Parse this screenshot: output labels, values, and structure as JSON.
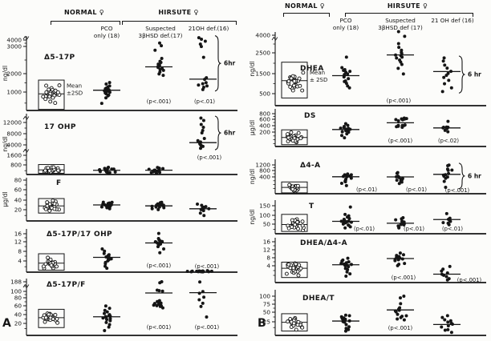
{
  "figure": {
    "background": "#fcfcfa",
    "ink": "#151515",
    "panel_labels": [
      "A",
      "B"
    ]
  },
  "panels": [
    {
      "label": "A",
      "header": {
        "normal": "NORMAL ♀",
        "hirsute": "HIRSUTE ♀",
        "columns": [
          {
            "line1": "PCO",
            "line2": "only (18)"
          },
          {
            "line1": "Suspected",
            "line2": "3βHSD def.(17)"
          },
          {
            "line1": "21OH def.(16)",
            "line2": ""
          }
        ]
      }
    },
    {
      "label": "B",
      "header": {
        "normal": "NORMAL ♀",
        "hirsute": "HIRSUTE ♀",
        "columns": [
          {
            "line1": "PCO",
            "line2": "only (18)"
          },
          {
            "line1": "Suspected",
            "line2": "3βHSD def (17)"
          },
          {
            "line1": "21 OH def (16)",
            "line2": ""
          }
        ]
      }
    }
  ],
  "chart_data": [
    {
      "panel": "A",
      "type": "scatter",
      "title": "Δ5-17P",
      "ylabel": "ng/dl",
      "yticks": [
        4000,
        3000,
        2000,
        1000
      ],
      "groups": {
        "normal": {
          "kind": "open-circles",
          "mean": 900,
          "range_2sd": [
            60,
            1650
          ],
          "n": 26,
          "note": [
            "Mean",
            "±2SD"
          ]
        },
        "pco": {
          "mean": 1100,
          "points": [
            380,
            700,
            780,
            840,
            900,
            950,
            980,
            1010,
            1040,
            1070,
            1100,
            1130,
            1170,
            1210,
            1260,
            1320,
            1430,
            1520
          ]
        },
        "suspected": {
          "mean": 2250,
          "p": "(p<.001)",
          "points": [
            1900,
            2000,
            2060,
            2110,
            2150,
            2190,
            2220,
            2250,
            2280,
            2310,
            2350,
            2400,
            2460,
            2550,
            2850,
            3150,
            3500
          ]
        },
        "oh21": {
          "mean": 1700,
          "p": "(p<.01)",
          "bracket": "6hr",
          "points": [
            1150,
            1250,
            1320,
            1380,
            1450,
            1520,
            1700,
            1780,
            2600,
            3000,
            3400,
            3800,
            4100,
            4350
          ]
        }
      }
    },
    {
      "panel": "A",
      "type": "scatter",
      "title": "17 OHP",
      "ylabel": "ng/dl",
      "yticks": [
        12000,
        8000,
        4000,
        1600,
        800
      ],
      "groups": {
        "normal": {
          "kind": "open-circles",
          "mean": 380,
          "range_2sd": [
            100,
            830
          ],
          "n": 24
        },
        "pco": {
          "mean": 350,
          "points": [
            110,
            140,
            170,
            200,
            230,
            260,
            290,
            310,
            340,
            370,
            400,
            430,
            460,
            500,
            540,
            580
          ]
        },
        "suspected": {
          "mean": 360,
          "points": [
            120,
            155,
            195,
            225,
            255,
            285,
            315,
            345,
            375,
            405,
            440,
            475,
            515,
            555,
            595
          ]
        },
        "oh21": {
          "mean": 4800,
          "p": "(p<.001)",
          "bracket": "6hr",
          "points": [
            3200,
            3600,
            3900,
            4100,
            4300,
            4600,
            5000,
            5600,
            6400,
            8200,
            9200,
            10200,
            11200,
            12600,
            13600
          ]
        }
      }
    },
    {
      "panel": "A",
      "type": "scatter",
      "title": "F",
      "ylabel": "μg/dl",
      "yticks": [
        80,
        60,
        40,
        20
      ],
      "groups": {
        "normal": {
          "kind": "open-circles",
          "mean": 28,
          "range_2sd": [
            14,
            43
          ],
          "n": 26
        },
        "pco": {
          "mean": 30,
          "points": [
            22,
            24,
            25,
            26,
            27,
            28,
            28,
            29,
            30,
            30,
            31,
            32,
            33,
            34,
            35,
            36
          ]
        },
        "suspected": {
          "mean": 28,
          "points": [
            20,
            22,
            24,
            25,
            26,
            27,
            28,
            29,
            29,
            30,
            31,
            32,
            33,
            35,
            36
          ]
        },
        "oh21": {
          "mean": 22,
          "points": [
            10,
            14,
            18,
            20,
            22,
            23,
            25,
            27,
            29,
            32
          ]
        }
      }
    },
    {
      "panel": "A",
      "type": "scatter",
      "title": "Δ5-17P/17 OHP",
      "ylabel": "",
      "yticks": [
        16,
        12,
        8,
        4
      ],
      "groups": {
        "normal": {
          "kind": "open-circles",
          "mean": 3.2,
          "range_2sd": [
            0.7,
            7
          ],
          "n": 24
        },
        "pco": {
          "mean": 5.5,
          "points": [
            1.5,
            2,
            3,
            3.5,
            4,
            4.5,
            4.8,
            5,
            5.3,
            5.6,
            5.9,
            6.2,
            6.6,
            7,
            8,
            9
          ]
        },
        "suspected": {
          "mean": 11.5,
          "p": "(p<.001)",
          "points": [
            7.5,
            9,
            10,
            10.5,
            11,
            11.2,
            11.5,
            11.8,
            12,
            12.2,
            12.5,
            13,
            13.5,
            16
          ]
        },
        "oh21": {
          "mean": null,
          "p": "(p<.001)",
          "points": [
            0.1,
            0.12,
            0.15,
            0.18,
            0.2,
            0.2,
            0.22,
            0.25,
            0.25,
            0.28,
            0.3,
            0.3,
            0.32,
            0.35,
            0.38,
            0.4,
            0.42,
            0.45
          ]
        }
      }
    },
    {
      "panel": "A",
      "type": "scatter",
      "title": "Δ5-17P/F",
      "ylabel": "",
      "yticks": [
        188,
        100,
        80,
        60,
        40,
        20
      ],
      "groups": {
        "normal": {
          "kind": "open-circles",
          "mean": 33,
          "range_2sd": [
            13,
            52
          ],
          "n": 26
        },
        "pco": {
          "mean": 35,
          "points": [
            8,
            14,
            18,
            22,
            26,
            29,
            31,
            33,
            34,
            35,
            36,
            38,
            40,
            43,
            46,
            50,
            55,
            60
          ]
        },
        "suspected": {
          "mean": 95,
          "p": "(p<.001)",
          "points": [
            55,
            58,
            60,
            61,
            62,
            63,
            64,
            65,
            66,
            68,
            70,
            72,
            100,
            107,
            112,
            180,
            186
          ]
        },
        "oh21": {
          "mean": 96,
          "p": "(p<.001)",
          "points": [
            35,
            58,
            66,
            75,
            82,
            95,
            100,
            186
          ]
        }
      }
    },
    {
      "panel": "B",
      "type": "scatter",
      "title": "DHEA",
      "ylabel": "ng/dl",
      "yticks": [
        4000,
        2500,
        1500,
        500
      ],
      "groups": {
        "normal": {
          "kind": "open-circles",
          "mean": 1150,
          "range_2sd": [
            320,
            2050
          ],
          "n": 28,
          "note": [
            "Mean",
            "± 2SD"
          ]
        },
        "pco": {
          "mean": 1400,
          "points": [
            800,
            900,
            1000,
            1100,
            1150,
            1250,
            1350,
            1400,
            1450,
            1500,
            1550,
            1600,
            1650,
            1700,
            1800,
            2300
          ]
        },
        "suspected": {
          "mean": 2400,
          "p": "(p<.001)",
          "points": [
            1500,
            1750,
            1950,
            2050,
            2150,
            2250,
            2300,
            2350,
            2400,
            2450,
            2550,
            2700,
            2950,
            3300,
            3900,
            4300
          ]
        },
        "oh21": {
          "mean": 1600,
          "bracket": "6 hr",
          "points": [
            600,
            800,
            1000,
            1150,
            1300,
            1400,
            1500,
            1600,
            1750,
            1900,
            2100,
            2250
          ]
        }
      }
    },
    {
      "panel": "B",
      "type": "scatter",
      "title": "DS",
      "ylabel": "μg/dl",
      "yticks": [
        800,
        600,
        400,
        200
      ],
      "groups": {
        "normal": {
          "kind": "open-circles",
          "mean": 125,
          "range_2sd": [
            25,
            270
          ],
          "n": 26
        },
        "pco": {
          "mean": 280,
          "points": [
            120,
            150,
            175,
            195,
            215,
            235,
            250,
            262,
            272,
            280,
            288,
            296,
            306,
            322,
            350,
            385,
            420,
            455
          ]
        },
        "suspected": {
          "mean": 490,
          "p": "(p<.001)",
          "points": [
            350,
            375,
            390,
            400,
            408,
            416,
            426,
            555,
            575,
            590,
            605,
            615,
            625,
            640
          ]
        },
        "oh21": {
          "mean": 330,
          "p": "(p<.02)",
          "points": [
            215,
            262,
            300,
            318,
            330,
            342,
            352,
            366,
            530
          ]
        }
      }
    },
    {
      "panel": "B",
      "type": "scatter",
      "title": "Δ4-A",
      "ylabel": "ng/dl",
      "yticks": [
        1200,
        800,
        400
      ],
      "groups": {
        "normal": {
          "kind": "open-circles",
          "mean": 150,
          "range_2sd": [
            20,
            280
          ],
          "n": 26
        },
        "pco": {
          "mean": 410,
          "p": "(p<.01)",
          "points": [
            200,
            250,
            282,
            302,
            322,
            346,
            370,
            394,
            416,
            440,
            464,
            490,
            515,
            540,
            565
          ]
        },
        "suspected": {
          "mean": 400,
          "p": "(p<.01)",
          "points": [
            250,
            280,
            300,
            316,
            330,
            346,
            362,
            380,
            400,
            422,
            446,
            600,
            650
          ]
        },
        "oh21": {
          "mean": 560,
          "p": "(p<.001)",
          "bracket": "6 hr",
          "points": [
            150,
            300,
            360,
            410,
            455,
            500,
            550,
            600,
            790,
            840,
            890,
            1140,
            1200
          ]
        }
      }
    },
    {
      "panel": "B",
      "type": "scatter",
      "title": "T",
      "ylabel": "ng/dl",
      "yticks": [
        150,
        100,
        50
      ],
      "groups": {
        "normal": {
          "kind": "open-circles",
          "mean": 48,
          "range_2sd": [
            12,
            105
          ],
          "n": 26
        },
        "pco": {
          "mean": 66,
          "p": "(p<.01)",
          "points": [
            30,
            36,
            42,
            47,
            52,
            56,
            58,
            61,
            63,
            65,
            68,
            72,
            76,
            82,
            90,
            97,
            104,
            145
          ]
        },
        "suspected": {
          "mean": 55,
          "p": "(p<.01)",
          "points": [
            30,
            35,
            40,
            45,
            48,
            52,
            55,
            58,
            61,
            64,
            68,
            74,
            80,
            86
          ]
        },
        "oh21": {
          "mean": 76,
          "p": "(p<.01)",
          "points": [
            48,
            55,
            60,
            66,
            70,
            76,
            82,
            110
          ]
        }
      }
    },
    {
      "panel": "B",
      "type": "scatter",
      "title": "DHEA/Δ4-A",
      "ylabel": "",
      "yticks": [
        16,
        12,
        8,
        4
      ],
      "groups": {
        "normal": {
          "kind": "open-circles",
          "mean": 3.4,
          "range_2sd": [
            1.2,
            5.8
          ],
          "n": 26
        },
        "pco": {
          "mean": 4.5,
          "points": [
            1.6,
            2.1,
            2.6,
            3,
            3.4,
            3.8,
            4.1,
            4.4,
            4.6,
            4.9,
            5.2,
            5.6,
            6,
            6.5,
            7,
            7.6
          ]
        },
        "suspected": {
          "mean": 7.6,
          "p": "(p<.001)",
          "points": [
            4.2,
            4.6,
            5.1,
            6.4,
            6.9,
            7.2,
            7.5,
            7.7,
            8,
            8.2,
            8.6,
            9,
            9.6,
            10.4
          ]
        },
        "oh21": {
          "mean": 2,
          "p": "(p<.001)",
          "points": [
            0.6,
            1,
            1.4,
            1.8,
            2,
            2.3,
            2.7,
            3.2,
            3.8
          ]
        }
      }
    },
    {
      "panel": "B",
      "type": "scatter",
      "title": "DHEA/T",
      "ylabel": "",
      "yticks": [
        100,
        75,
        50,
        25
      ],
      "groups": {
        "normal": {
          "kind": "open-circles",
          "mean": 24,
          "range_2sd": [
            8,
            46
          ],
          "n": 26
        },
        "pco": {
          "mean": 27,
          "points": [
            8,
            11,
            13,
            16,
            20,
            24,
            25,
            27,
            28,
            30,
            31,
            33,
            35,
            38,
            41,
            43
          ]
        },
        "suspected": {
          "mean": 57,
          "p": "(p<.001)",
          "points": [
            30,
            33,
            36,
            39,
            41,
            44,
            50,
            54,
            57,
            59,
            61,
            63,
            76,
            95,
            101
          ]
        },
        "oh21": {
          "mean": 20,
          "points": [
            6,
            9,
            11,
            15,
            18,
            20,
            22,
            25,
            28,
            31,
            36,
            41
          ]
        }
      }
    }
  ]
}
